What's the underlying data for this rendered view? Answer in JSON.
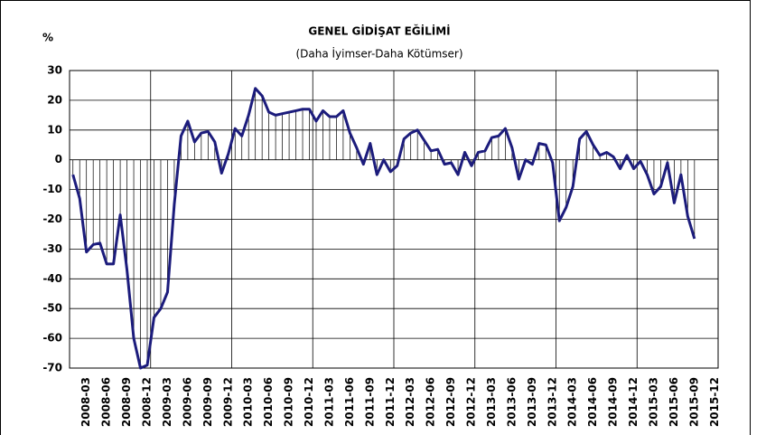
{
  "chart_data": {
    "type": "line",
    "title": "GENEL GİDİŞAT EĞİLİMİ",
    "subtitle": "(Daha İyimser-Daha Kötümser)",
    "y_label": "%",
    "categories": [
      null,
      null,
      "2008-03",
      null,
      null,
      "2008-06",
      null,
      null,
      "2008-09",
      null,
      null,
      "2008-12",
      null,
      null,
      "2009-03",
      null,
      null,
      "2009-06",
      null,
      null,
      "2009-09",
      null,
      null,
      "2009-12",
      null,
      null,
      "2010-03",
      null,
      null,
      "2010-06",
      null,
      null,
      "2010-09",
      null,
      null,
      "2010-12",
      null,
      null,
      "2011-03",
      null,
      null,
      "2011-06",
      null,
      null,
      "2011-09",
      null,
      null,
      "2011-12",
      null,
      null,
      "2012-03",
      null,
      null,
      "2012-06",
      null,
      null,
      "2012-09",
      null,
      null,
      "2012-12",
      null,
      null,
      "2013-03",
      null,
      null,
      "2013-06",
      null,
      null,
      "2013-09",
      null,
      null,
      "2013-12",
      null,
      null,
      "2014-03",
      null,
      null,
      "2014-06",
      null,
      null,
      "2014-09",
      null,
      null,
      "2014-12",
      null,
      null,
      "2015-03",
      null,
      null,
      "2015-06",
      null,
      null,
      "2015-09",
      null,
      null,
      "2015-12"
    ],
    "values": [
      -5,
      -13,
      -31,
      -28.5,
      -28,
      -35,
      -35,
      -18.5,
      -37,
      -60,
      -70,
      -69,
      -53,
      -50,
      -44.5,
      -15,
      8,
      13,
      6,
      9,
      9.5,
      6,
      -4.5,
      2,
      10.5,
      8,
      15,
      24,
      21.5,
      16,
      15,
      15.5,
      16,
      16.5,
      17,
      17,
      13,
      16.5,
      14.5,
      14.5,
      16.5,
      9,
      4,
      -1.5,
      5.5,
      -5,
      0,
      -4,
      -2,
      7,
      9,
      10,
      6.5,
      3,
      3.5,
      -1.5,
      -1,
      -5,
      2.5,
      -2,
      2.5,
      3,
      7.5,
      8,
      10.5,
      4,
      -6.5,
      0,
      -1.5,
      5.5,
      5,
      -1,
      -20.5,
      -16,
      -9,
      7,
      9.5,
      5,
      1.5,
      2.5,
      1,
      -3,
      1.5,
      -3,
      -0.5,
      -5,
      -11.5,
      -9,
      -1,
      -14.5,
      -5,
      -19,
      -26.5,
      null,
      null,
      null
    ],
    "color": "#1c1c7c",
    "ylim": [
      -70,
      30
    ],
    "yticks": [
      -70,
      -60,
      -50,
      -40,
      -30,
      -20,
      -10,
      0,
      10,
      20,
      30
    ],
    "grid": true,
    "drop_lines": true
  }
}
